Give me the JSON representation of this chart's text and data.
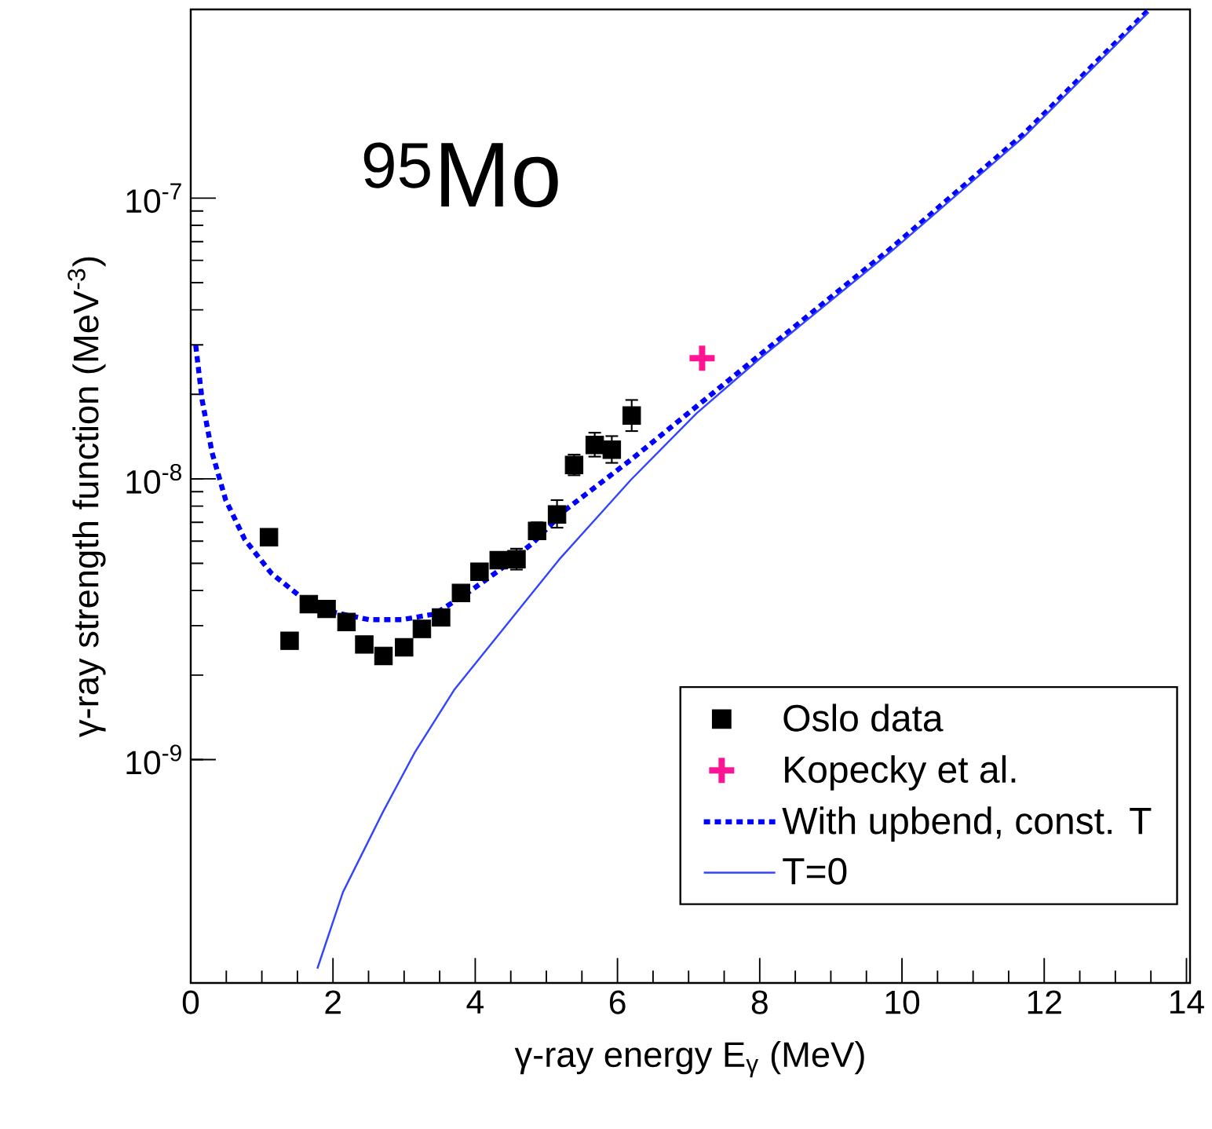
{
  "chart_data": {
    "type": "scatter",
    "xlabel": "γ-ray energy E$_{γ}$ (MeV)",
    "ylabel": "γ-ray strength function (MeV$^{-3}$)",
    "annotations": [
      "$^{95}$Mo"
    ],
    "log": "y",
    "legend": "bottom right",
    "xlim": [
      0,
      14.05
    ],
    "ylim": [
      1.6e-10,
      4.7e-07
    ],
    "xticks": [
      0,
      2,
      4,
      6,
      8,
      10,
      12,
      14
    ],
    "yticks": [
      {
        "value": 1e-09,
        "label": "10$^{-9}$"
      },
      {
        "value": 1e-08,
        "label": "10$^{-8}$"
      },
      {
        "value": 1e-07,
        "label": "10$^{-7}$"
      }
    ],
    "series": [
      {
        "name": "Oslo data",
        "type": "scatter",
        "marker": "square",
        "color": "#000000",
        "x": [
          1.1,
          1.39,
          1.66,
          1.91,
          2.19,
          2.44,
          2.71,
          3.0,
          3.25,
          3.52,
          3.8,
          4.06,
          4.33,
          4.58,
          4.87,
          5.15,
          5.39,
          5.68,
          5.92,
          6.2
        ],
        "values": [
          6.2e-09,
          2.65e-09,
          3.58e-09,
          3.44e-09,
          3.09e-09,
          2.57e-09,
          2.34e-09,
          2.51e-09,
          2.92e-09,
          3.21e-09,
          3.92e-09,
          4.67e-09,
          5.13e-09,
          5.17e-09,
          6.52e-09,
          7.47e-09,
          1.12e-08,
          1.32e-08,
          1.27e-08,
          1.68e-08
        ],
        "errors": [
          null,
          null,
          null,
          null,
          null,
          null,
          null,
          null,
          null,
          null,
          null,
          null,
          null,
          [
            4.75e-09,
            5.64e-09
          ],
          [
            6.1e-09,
            7e-09
          ],
          [
            6.7e-09,
            8.4e-09
          ],
          [
            1.03e-08,
            1.22e-08
          ],
          [
            1.2e-08,
            1.46e-08
          ],
          [
            1.14e-08,
            1.42e-08
          ],
          [
            1.48e-08,
            1.91e-08
          ]
        ]
      },
      {
        "name": "Kopecky et al.",
        "type": "scatter",
        "marker": "cross",
        "color": "#ff1493",
        "x": [
          7.19
        ],
        "values": [
          2.69e-08
        ]
      },
      {
        "name": "With upbend, const. T",
        "type": "line",
        "marker": "none",
        "line_style": "dotted",
        "color": "#0000ff",
        "x": [
          0.07,
          0.16,
          0.3,
          0.49,
          0.76,
          1.13,
          1.59,
          2.05,
          2.51,
          2.97,
          3.43,
          3.89,
          4.35,
          4.81,
          5.27,
          6.19,
          7.11,
          8.03,
          9.87,
          11.71,
          13.46
        ],
        "values": [
          2.99e-08,
          1.91e-08,
          1.24e-08,
          8.43e-09,
          6.08e-09,
          4.62e-09,
          3.72e-09,
          3.33e-09,
          3.15e-09,
          3.15e-09,
          3.3e-09,
          3.92e-09,
          4.75e-09,
          5.91e-09,
          7.76e-09,
          1.17e-08,
          1.81e-08,
          2.8e-08,
          6.7e-08,
          1.69e-07,
          4.66e-07
        ]
      },
      {
        "name": "T=0",
        "type": "line",
        "marker": "none",
        "line_style": "solid",
        "color": "#3344ff",
        "x": [
          1.78,
          2.14,
          2.7,
          3.15,
          3.71,
          4.35,
          5.18,
          6.19,
          7.11,
          8.03,
          9.87,
          11.71,
          13.46
        ],
        "values": [
          1.8e-10,
          3.37e-10,
          6.49e-10,
          1.06e-09,
          1.78e-09,
          2.83e-09,
          5.16e-09,
          9.93e-09,
          1.71e-08,
          2.72e-08,
          6.53e-08,
          1.65e-07,
          4.58e-07
        ]
      }
    ]
  }
}
